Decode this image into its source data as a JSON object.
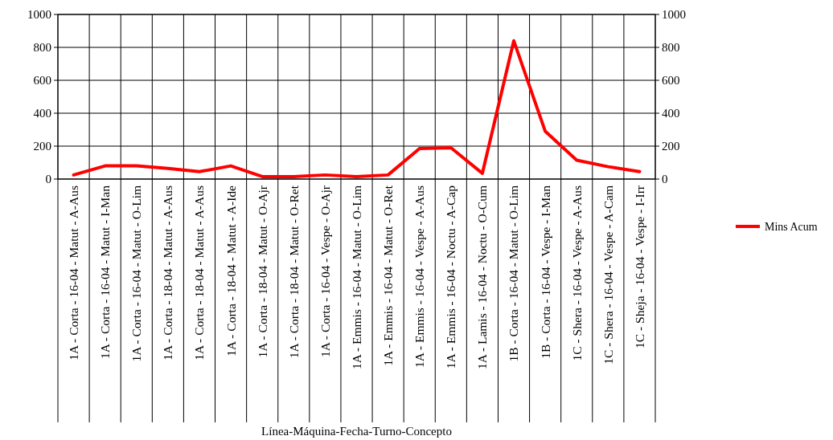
{
  "chart_data": {
    "type": "line",
    "xlabel": "Línea-Máquina-Fecha-Turno-Concepto",
    "categories": [
      "1A - Corta - 16-04 - Matut - A-Aus",
      "1A - Corta - 16-04 - Matut - I-Man",
      "1A - Corta - 16-04 - Matut - O-Lim",
      "1A - Corta - 18-04 - Matut - A-Aus",
      "1A - Corta - 18-04 - Matut - A-Aus",
      "1A - Corta - 18-04 - Matut - A-Ide",
      "1A - Corta - 18-04 - Matut - O-Ajr",
      "1A - Corta - 18-04 - Matut - O-Ret",
      "1A - Corta - 16-04 - Vespe - O-Ajr",
      "1A - Emmis - 16-04 - Matut - O-Lim",
      "1A - Emmis - 16-04 - Matut - O-Ret",
      "1A - Emmis - 16-04 - Vespe - A-Aus",
      "1A - Emmis - 16-04 - Noctu - A-Cap",
      "1A - Lamis - 16-04 - Noctu - O-Cum",
      "1B - Corta - 16-04 - Matut - O-Lim",
      "1B - Corta - 16-04 - Vespe - I-Man",
      "1C - Shera - 16-04 - Vespe - A-Aus",
      "1C - Shera - 16-04 - Vespe - A-Cam",
      "1C - Sheja - 16-04 - Vespe - I-Irr"
    ],
    "series": [
      {
        "name": "Mins Acum",
        "color": "#ff0000",
        "values": [
          25,
          80,
          80,
          65,
          45,
          80,
          15,
          15,
          25,
          15,
          25,
          185,
          190,
          35,
          840,
          290,
          115,
          75,
          45
        ]
      }
    ],
    "ylim": [
      0,
      1000
    ],
    "yticks": [
      0,
      200,
      400,
      600,
      800,
      1000
    ],
    "y2lim": [
      0,
      1000
    ],
    "y2ticks": [
      0,
      200,
      400,
      600,
      800,
      1000
    ],
    "grid": true,
    "legend": "right",
    "marker": "none",
    "line_style": "solid"
  }
}
